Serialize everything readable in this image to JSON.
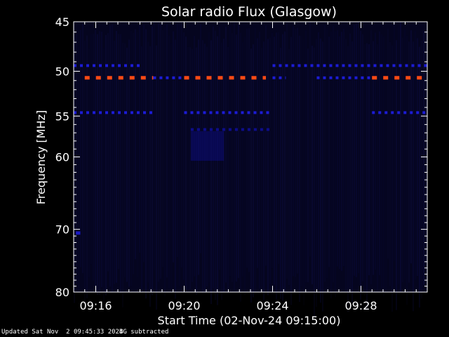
{
  "chart_data": {
    "type": "heatmap",
    "title": "Solar radio Flux (Glasgow)",
    "xlabel": "Start Time (02-Nov-24 09:15:00)",
    "ylabel": "Frequency [MHz]",
    "xlim_minutes": [
      0,
      16
    ],
    "ylim_mhz": [
      45,
      80
    ],
    "y_scale": "log",
    "x_ticks": [
      {
        "label": "09:16",
        "minute": 1
      },
      {
        "label": "09:20",
        "minute": 5
      },
      {
        "label": "09:24",
        "minute": 9
      },
      {
        "label": "09:28",
        "minute": 13
      }
    ],
    "y_ticks": [
      45,
      50,
      55,
      60,
      70,
      80
    ],
    "colors": {
      "background": "#000000",
      "plot_background": "#05051f",
      "band_strong": "#ff4a14",
      "band_medium": "#1c1cd6",
      "band_weak": "#0d0d8a",
      "axes": "#ffffff"
    },
    "bands": [
      {
        "freq_mhz": 49.4,
        "intensity": "medium",
        "segments": [
          [
            0,
            3.0
          ],
          [
            9.0,
            16
          ]
        ]
      },
      {
        "freq_mhz": 50.7,
        "intensity": "strong",
        "segments": [
          [
            0.5,
            3.6
          ],
          [
            5.0,
            8.7
          ],
          [
            13.5,
            16
          ]
        ]
      },
      {
        "freq_mhz": 50.7,
        "intensity": "medium",
        "segments": [
          [
            3.6,
            5.0
          ],
          [
            9.0,
            9.6
          ],
          [
            11.0,
            13.5
          ]
        ]
      },
      {
        "freq_mhz": 54.6,
        "intensity": "medium",
        "segments": [
          [
            0,
            3.7
          ],
          [
            5.0,
            9.0
          ],
          [
            13.5,
            16
          ]
        ]
      },
      {
        "freq_mhz": 56.6,
        "intensity": "weak",
        "segments": [
          [
            5.3,
            9.0
          ]
        ]
      }
    ],
    "regions": [
      {
        "freq_range_mhz": [
          56.8,
          60.5
        ],
        "minute_range": [
          5.3,
          6.8
        ],
        "intensity": "weak"
      },
      {
        "freq_range_mhz": [
          70.3,
          70.8
        ],
        "minute_range": [
          0.1,
          0.3
        ],
        "intensity": "medium"
      }
    ]
  },
  "footer": {
    "updated": "Updated Sat Nov  2 09:45:33 2024",
    "note": "BG subtracted"
  }
}
